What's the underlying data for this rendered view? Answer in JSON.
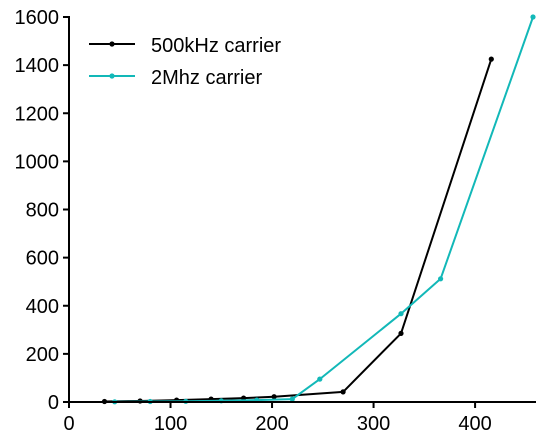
{
  "chart_data": {
    "type": "line",
    "title": "",
    "xlabel": "",
    "ylabel": "",
    "xlim": [
      0,
      460
    ],
    "ylim": [
      0,
      1600
    ],
    "xticks": [
      0,
      100,
      200,
      300,
      400
    ],
    "yticks": [
      0,
      200,
      400,
      600,
      800,
      1000,
      1200,
      1400,
      1600
    ],
    "grid": false,
    "legend": "top-left",
    "series": [
      {
        "name": "500kHz carrier",
        "color": "#000000",
        "x": [
          35,
          70,
          106,
          140,
          172,
          202,
          270,
          327,
          416
        ],
        "y": [
          2,
          4,
          8,
          12,
          16,
          22,
          42,
          285,
          1425
        ]
      },
      {
        "name": "2Mhz carrier",
        "color": "#12B8B8",
        "x": [
          45,
          80,
          115,
          150,
          185,
          220,
          247,
          327,
          366,
          457
        ],
        "y": [
          1,
          2,
          3,
          5,
          8,
          12,
          95,
          367,
          512,
          1600
        ]
      }
    ]
  }
}
